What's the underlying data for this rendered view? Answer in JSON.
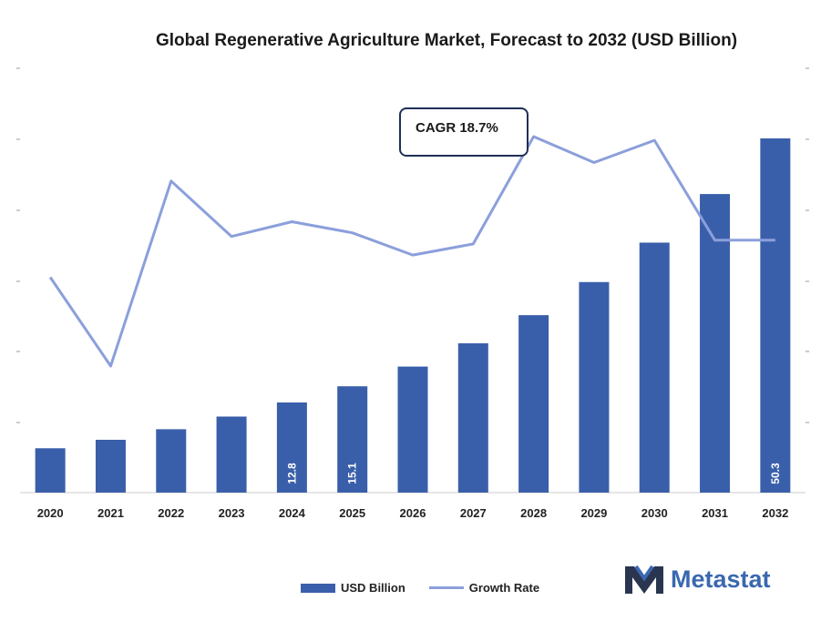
{
  "chart_data": {
    "type": "bar",
    "title": "Global Regenerative Agriculture Market, Forecast to 2032 (USD Billion)",
    "categories": [
      "2020",
      "2021",
      "2022",
      "2023",
      "2024",
      "2025",
      "2026",
      "2027",
      "2028",
      "2029",
      "2030",
      "2031",
      "2032"
    ],
    "series": [
      {
        "name": "USD Billion",
        "kind": "bar",
        "color": "#3a5faa",
        "values": [
          6.3,
          7.5,
          9.0,
          10.8,
          12.8,
          15.1,
          17.9,
          21.2,
          25.2,
          29.9,
          35.5,
          42.4,
          50.3
        ]
      },
      {
        "name": "Growth Rate",
        "kind": "line",
        "color": "#8b9fdb",
        "values": [
          17.0,
          14.6,
          19.6,
          18.1,
          18.5,
          18.2,
          17.6,
          17.9,
          20.8,
          20.1,
          20.7,
          18.0,
          18.0
        ]
      }
    ],
    "data_labels": {
      "4": "12.8",
      "5": "15.1",
      "12": "50.3"
    },
    "ylim": [
      0,
      50.3
    ],
    "annotation": "CAGR 18.7%",
    "legend_position": "bottom"
  },
  "brand": {
    "name": "Metastat",
    "color": "#3a68b0"
  }
}
